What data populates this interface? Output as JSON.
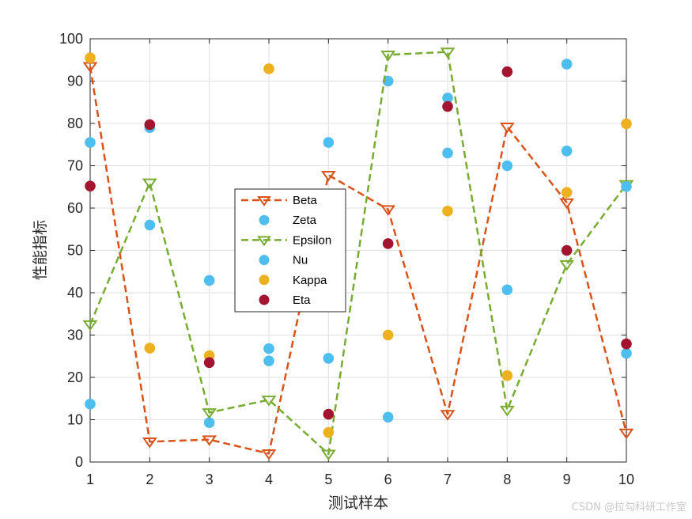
{
  "chart_data": {
    "type": "scatter",
    "xlabel": "测试样本",
    "ylabel": "性能指标",
    "xlim": [
      1,
      10
    ],
    "ylim": [
      0,
      100
    ],
    "xticks": [
      1,
      2,
      3,
      4,
      5,
      6,
      7,
      8,
      9,
      10
    ],
    "yticks": [
      0,
      10,
      20,
      30,
      40,
      50,
      60,
      70,
      80,
      90,
      100
    ],
    "grid": true,
    "legend_position": "center-left",
    "x": [
      1,
      2,
      3,
      4,
      5,
      6,
      7,
      8,
      9,
      10
    ],
    "series": [
      {
        "name": "Beta",
        "style": "dashed-line-triangle-marker",
        "color": "#D95319",
        "values": [
          93.5,
          4.8,
          5.3,
          2.0,
          67.8,
          59.7,
          11.3,
          79.2,
          61.3,
          6.9
        ]
      },
      {
        "name": "Zeta",
        "style": "dots",
        "color": "#4DBEEE",
        "values": [
          75.5,
          56.0,
          9.3,
          23.9,
          24.5,
          90.0,
          73.0,
          70.0,
          73.5,
          25.7
        ]
      },
      {
        "name": "Epsilon",
        "style": "dashed-line-triangle-marker",
        "color": "#77AC30",
        "values": [
          32.5,
          66.0,
          11.7,
          14.7,
          1.9,
          96.2,
          96.9,
          12.3,
          46.7,
          65.6
        ]
      },
      {
        "name": "Nu",
        "style": "dots",
        "color": "#4DBEEE",
        "values": [
          13.7,
          79.0,
          42.9,
          26.8,
          75.5,
          10.6,
          86.0,
          40.7,
          94.0,
          65.1
        ]
      },
      {
        "name": "Kappa",
        "style": "dots",
        "color": "#EDB120",
        "values": [
          95.5,
          26.9,
          25.1,
          92.9,
          7.0,
          30.0,
          59.3,
          20.4,
          63.7,
          79.9
        ]
      },
      {
        "name": "Eta",
        "style": "dots",
        "color": "#A2142F",
        "values": [
          65.2,
          79.7,
          23.5,
          null,
          11.3,
          51.6,
          84.0,
          92.2,
          50.0,
          27.9
        ]
      }
    ]
  },
  "watermark": "CSDN @拉勾科研工作室"
}
